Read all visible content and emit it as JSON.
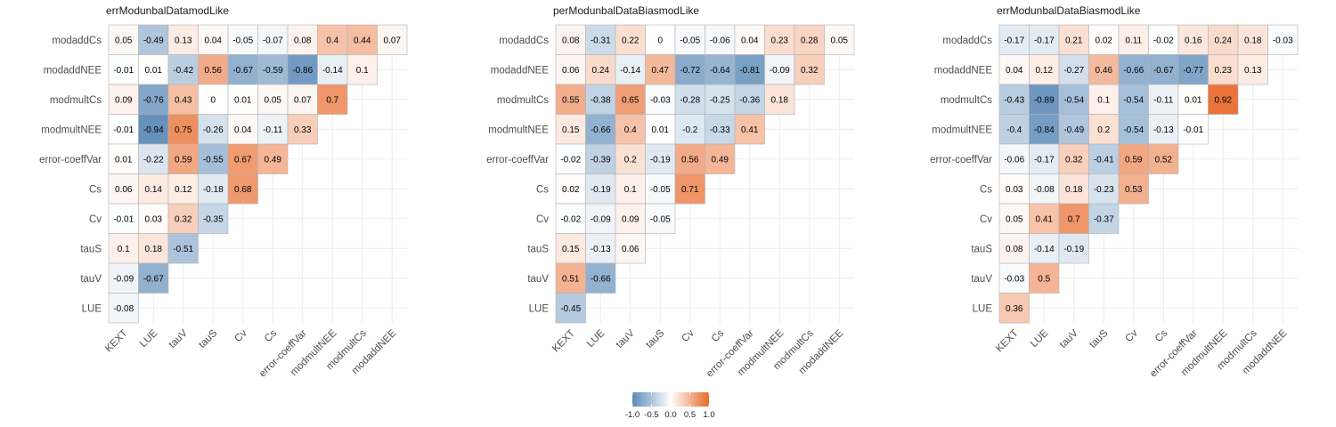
{
  "colors": {
    "negative": "#5c8ab8",
    "zero": "#ffffff",
    "positive": "#e8692a",
    "grid": "#ebebeb",
    "cell_border": "#b3b3b3"
  },
  "legend": {
    "ticks": [
      "-1.0",
      "-0.5",
      "0.0",
      "0.5",
      "1.0"
    ],
    "range": [
      -1,
      1
    ]
  },
  "chart_data": [
    {
      "type": "heatmap",
      "title": "errModunbalDatamodLike",
      "y_categories": [
        "modaddCs",
        "modaddNEE",
        "modmultCs",
        "modmultNEE",
        "error-coeffVar",
        "Cs",
        "Cv",
        "tauS",
        "tauV",
        "LUE"
      ],
      "x_categories": [
        "KEXT",
        "LUE",
        "tauV",
        "tauS",
        "Cv",
        "Cs",
        "error-coeffVar",
        "modmultNEE",
        "modmultCs",
        "modaddNEE"
      ],
      "values": [
        [
          "0.05",
          "-0.49",
          "0.13",
          "0.04",
          "-0.05",
          "-0.07",
          "0.08",
          "0.4",
          "0.44",
          "0.07"
        ],
        [
          "-0.01",
          "0.01",
          "-0.42",
          "0.56",
          "-0.67",
          "-0.59",
          "-0.86",
          "-0.14",
          "0.1"
        ],
        [
          "0.09",
          "-0.76",
          "0.43",
          "0",
          "0.01",
          "0.05",
          "0.07",
          "0.7"
        ],
        [
          "-0.01",
          "-0.94",
          "0.75",
          "-0.26",
          "0.04",
          "-0.11",
          "0.33"
        ],
        [
          "0.01",
          "-0.22",
          "0.59",
          "-0.55",
          "0.67",
          "0.49"
        ],
        [
          "0.06",
          "0.14",
          "0.12",
          "-0.18",
          "0.68"
        ],
        [
          "-0.01",
          "0.03",
          "0.32",
          "-0.35"
        ],
        [
          "0.1",
          "0.18",
          "-0.51"
        ],
        [
          "-0.09",
          "-0.67"
        ],
        [
          "-0.08"
        ]
      ]
    },
    {
      "type": "heatmap",
      "title": "perModunbalDataBiasmodLike",
      "y_categories": [
        "modaddCs",
        "modaddNEE",
        "modmultCs",
        "modmultNEE",
        "error-coeffVar",
        "Cs",
        "Cv",
        "tauS",
        "tauV",
        "LUE"
      ],
      "x_categories": [
        "KEXT",
        "LUE",
        "tauV",
        "tauS",
        "Cv",
        "Cs",
        "error-coeffVar",
        "modmultNEE",
        "modmultCs",
        "modaddNEE"
      ],
      "values": [
        [
          "0.08",
          "-0.31",
          "0.22",
          "0",
          "-0.05",
          "-0.06",
          "0.04",
          "0.23",
          "0.28",
          "0.05"
        ],
        [
          "0.06",
          "0.24",
          "-0.14",
          "0.47",
          "-0.72",
          "-0.64",
          "-0.81",
          "-0.09",
          "0.32"
        ],
        [
          "0.55",
          "-0.38",
          "0.65",
          "-0.03",
          "-0.28",
          "-0.25",
          "-0.36",
          "0.18"
        ],
        [
          "0.15",
          "-0.66",
          "0.4",
          "0.01",
          "-0.2",
          "-0.33",
          "0.41"
        ],
        [
          "-0.02",
          "-0.39",
          "0.2",
          "-0.19",
          "0.56",
          "0.49"
        ],
        [
          "0.02",
          "-0.19",
          "0.1",
          "-0.05",
          "0.71"
        ],
        [
          "-0.02",
          "-0.09",
          "0.09",
          "-0.05"
        ],
        [
          "0.15",
          "-0.13",
          "0.06"
        ],
        [
          "0.51",
          "-0.66"
        ],
        [
          "-0.45"
        ]
      ]
    },
    {
      "type": "heatmap",
      "title": "errModunbalDataBiasmodLike",
      "y_categories": [
        "modaddCs",
        "modaddNEE",
        "modmultCs",
        "modmultNEE",
        "error-coeffVar",
        "Cs",
        "Cv",
        "tauS",
        "tauV",
        "LUE"
      ],
      "x_categories": [
        "KEXT",
        "LUE",
        "tauV",
        "tauS",
        "Cv",
        "Cs",
        "error-coeffVar",
        "modmultNEE",
        "modmultCs",
        "modaddNEE"
      ],
      "values": [
        [
          "-0.17",
          "-0.17",
          "0.21",
          "0.02",
          "0.11",
          "-0.02",
          "0.16",
          "0.24",
          "0.18",
          "-0.03"
        ],
        [
          "0.04",
          "0.12",
          "-0.27",
          "0.46",
          "-0.66",
          "-0.67",
          "-0.77",
          "0.23",
          "0.13"
        ],
        [
          "-0.43",
          "-0.89",
          "-0.54",
          "0.1",
          "-0.54",
          "-0.11",
          "0.01",
          "0.92"
        ],
        [
          "-0.4",
          "-0.84",
          "-0.49",
          "0.2",
          "-0.54",
          "-0.13",
          "-0.01"
        ],
        [
          "-0.06",
          "-0.17",
          "0.32",
          "-0.41",
          "0.59",
          "0.52"
        ],
        [
          "0.03",
          "-0.08",
          "0.18",
          "-0.23",
          "0.53"
        ],
        [
          "0.05",
          "0.41",
          "0.7",
          "-0.37"
        ],
        [
          "0.08",
          "-0.14",
          "-0.19"
        ],
        [
          "-0.03",
          "0.5"
        ],
        [
          "0.36"
        ]
      ]
    }
  ]
}
